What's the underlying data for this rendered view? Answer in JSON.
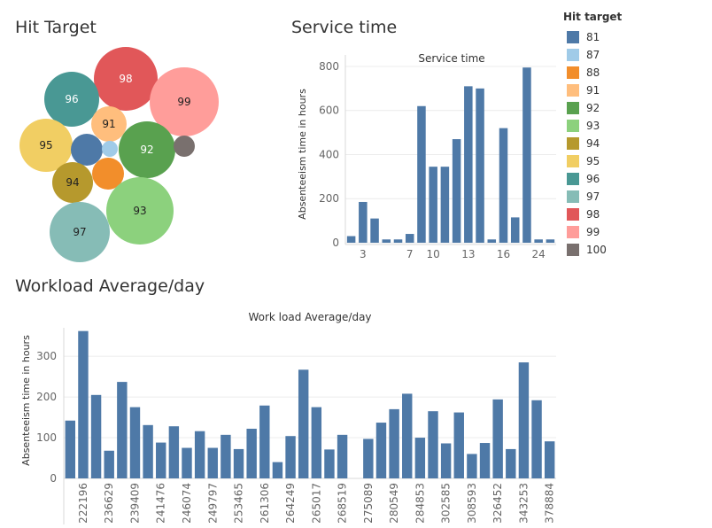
{
  "titles": {
    "hit_target": "Hit Target",
    "service_time": "Service time",
    "workload": "Workload Average/day"
  },
  "chart_data": [
    {
      "type": "bubble",
      "name": "hit-target-bubbles",
      "labels": [
        "98",
        "96",
        "99",
        "91",
        "95",
        "92",
        "94",
        "93",
        "97"
      ],
      "legend_title": "Hit target",
      "legend": [
        {
          "label": "81",
          "color": "#4e79a7"
        },
        {
          "label": "87",
          "color": "#a0cbe8"
        },
        {
          "label": "88",
          "color": "#f28e2b"
        },
        {
          "label": "91",
          "color": "#ffbe7d"
        },
        {
          "label": "92",
          "color": "#59a14f"
        },
        {
          "label": "93",
          "color": "#8cd17d"
        },
        {
          "label": "94",
          "color": "#b6992d"
        },
        {
          "label": "95",
          "color": "#f1ce63"
        },
        {
          "label": "96",
          "color": "#499894"
        },
        {
          "label": "97",
          "color": "#86bcb6"
        },
        {
          "label": "98",
          "color": "#e15759"
        },
        {
          "label": "99",
          "color": "#ff9d9a"
        },
        {
          "label": "100",
          "color": "#79706e"
        }
      ]
    },
    {
      "type": "bar",
      "title": "Service time",
      "ylabel": "Absenteeism time in hours",
      "ylim": [
        0,
        820
      ],
      "yticks": [
        "0",
        "200",
        "400",
        "600",
        "800"
      ],
      "x": [
        1,
        3,
        4,
        5,
        6,
        7,
        9,
        10,
        11,
        12,
        13,
        14,
        15,
        16,
        17,
        18,
        24,
        25
      ],
      "values": [
        30,
        185,
        110,
        15,
        15,
        40,
        620,
        345,
        345,
        470,
        710,
        700,
        15,
        520,
        115,
        795,
        15,
        15
      ],
      "xtick_labels": [
        "3",
        "7",
        "10",
        "13",
        "16",
        "24"
      ],
      "bar_color": "#4e79a7"
    },
    {
      "type": "bar",
      "title": "Work load Average/day",
      "ylabel": "Absenteeism time in hours",
      "ylim": [
        0,
        370
      ],
      "yticks": [
        "0",
        "100",
        "200",
        "300"
      ],
      "categories": [
        "",
        "222196",
        "",
        "236629",
        "",
        "239409",
        "",
        "241476",
        "",
        "246074",
        "",
        "249797",
        "",
        "253465",
        "",
        "261306",
        "",
        "264249",
        "",
        "265017",
        "",
        "268519",
        "",
        "275089",
        "",
        "280549",
        "",
        "284853",
        "",
        "302585",
        "",
        "308593",
        "",
        "326452",
        "",
        "343253",
        "",
        "378884"
      ],
      "values": [
        142,
        362,
        205,
        68,
        237,
        175,
        131,
        88,
        128,
        75,
        116,
        75,
        107,
        72,
        122,
        179,
        40,
        104,
        267,
        175,
        71,
        107,
        0,
        97,
        137,
        170,
        208,
        100,
        165,
        86,
        162,
        60,
        87,
        194,
        72,
        285,
        192,
        91
      ],
      "bar_color": "#4e79a7"
    }
  ]
}
